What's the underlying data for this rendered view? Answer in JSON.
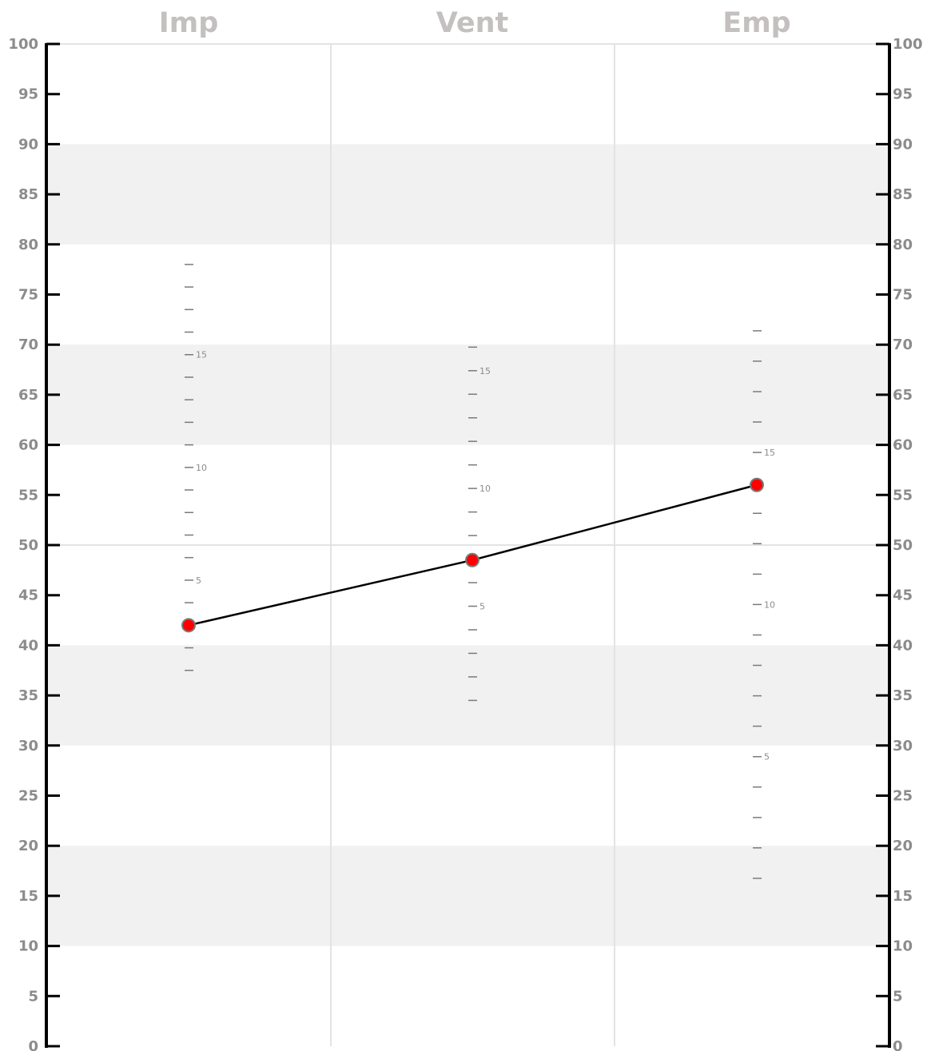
{
  "chart_data": {
    "type": "line",
    "categories": [
      "Imp",
      "Vent",
      "Emp"
    ],
    "values": [
      42,
      48.5,
      56
    ],
    "ylim": [
      0,
      100
    ],
    "yticks": [
      "0",
      "5",
      "10",
      "15",
      "20",
      "25",
      "30",
      "35",
      "40",
      "45",
      "50",
      "55",
      "60",
      "65",
      "70",
      "75",
      "80",
      "85",
      "90",
      "95",
      "100"
    ],
    "bands": [
      [
        10,
        20
      ],
      [
        30,
        40
      ],
      [
        60,
        70
      ],
      [
        80,
        90
      ]
    ],
    "grid": true,
    "column_scales": [
      {
        "column": "Imp",
        "ticks": [
          37.5,
          39.75,
          42,
          44.25,
          46.5,
          48.75,
          51,
          53.25,
          55.5,
          57.75,
          60,
          62.25,
          64.5,
          66.75,
          69,
          71.25,
          73.5,
          75.75,
          78
        ],
        "labels": [
          {
            "y": 46.5,
            "text": "5"
          },
          {
            "y": 57.75,
            "text": "10"
          },
          {
            "y": 69,
            "text": "15"
          }
        ]
      },
      {
        "column": "Vent",
        "ticks": [
          34.5,
          36.85,
          39.2,
          41.55,
          43.9,
          46.25,
          48.6,
          50.95,
          53.3,
          55.65,
          58,
          60.35,
          62.7,
          65.05,
          67.4,
          69.75
        ],
        "labels": [
          {
            "y": 43.9,
            "text": "5"
          },
          {
            "y": 55.65,
            "text": "10"
          },
          {
            "y": 67.4,
            "text": "15"
          }
        ]
      },
      {
        "column": "Emp",
        "ticks": [
          16.75,
          19.79,
          22.82,
          25.86,
          28.89,
          31.93,
          34.96,
          38.0,
          41.03,
          44.07,
          47.1,
          50.14,
          53.17,
          56.21,
          59.24,
          62.28,
          65.31,
          68.35,
          71.38
        ],
        "labels": [
          {
            "y": 28.89,
            "text": "5"
          },
          {
            "y": 44.07,
            "text": "10"
          },
          {
            "y": 59.24,
            "text": "15"
          }
        ]
      }
    ],
    "colors": {
      "point_fill": "#ff0000",
      "point_stroke": "#7a7a7a",
      "line": "#000000",
      "band": "#f1f1f1",
      "grid": "#e3e3e3",
      "axis": "#000000",
      "text": "#8c8c8c",
      "title": "#c4c0c0"
    }
  }
}
